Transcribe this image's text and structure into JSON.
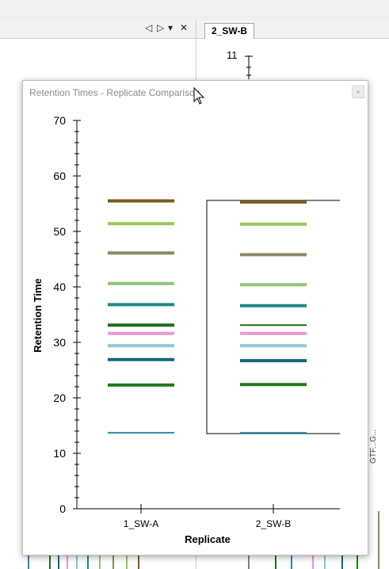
{
  "app": {
    "tab_label": "2_SW-B",
    "pane_controls": {
      "prev": "◁",
      "next": "▷",
      "menu": "▾",
      "close": "✕"
    },
    "background_axis_value": "11",
    "background_side_label": "GTF...G..."
  },
  "dialog": {
    "title": "Retention Times - Replicate Comparison",
    "close_label": "×"
  },
  "colors": {
    "brown": "#7a5a1a",
    "light_green": "#9cc45a",
    "olive": "#8a8a66",
    "pale_green": "#8fc47a",
    "teal": "#1a8a8a",
    "dark_green": "#1e6e1e",
    "pink": "#e89ad0",
    "light_blue": "#8fc8d4",
    "dark_teal": "#106878",
    "green": "#1e7a1e",
    "steel_blue": "#2a8aa8"
  },
  "chart_data": {
    "type": "scatter",
    "title": "",
    "xlabel": "Replicate",
    "ylabel": "Retention Time",
    "categories": [
      "1_SW-A",
      "2_SW-B"
    ],
    "ylim": [
      0,
      70
    ],
    "yticks": [
      0,
      10,
      20,
      30,
      40,
      50,
      60,
      70
    ],
    "grid": false,
    "selected_category": "2_SW-B",
    "series": [
      {
        "color": "#7a5a1a",
        "values": [
          55.5,
          55.3
        ]
      },
      {
        "color": "#9cc45a",
        "values": [
          51.4,
          51.3
        ]
      },
      {
        "color": "#8a8a66",
        "values": [
          46.1,
          45.8
        ]
      },
      {
        "color": "#8fc47a",
        "values": [
          40.6,
          40.4
        ]
      },
      {
        "color": "#1a8a8a",
        "values": [
          36.8,
          36.6
        ]
      },
      {
        "color": "#1e6e1e",
        "values": [
          33.1,
          33.1
        ]
      },
      {
        "color": "#e89ad0",
        "values": [
          31.6,
          31.6
        ]
      },
      {
        "color": "#8fc8d4",
        "values": [
          29.4,
          29.4
        ]
      },
      {
        "color": "#106878",
        "values": [
          26.9,
          26.7
        ]
      },
      {
        "color": "#1e7a1e",
        "values": [
          22.3,
          22.4
        ]
      },
      {
        "color": "#2a8aa8",
        "values": [
          13.7,
          13.7
        ]
      }
    ]
  }
}
